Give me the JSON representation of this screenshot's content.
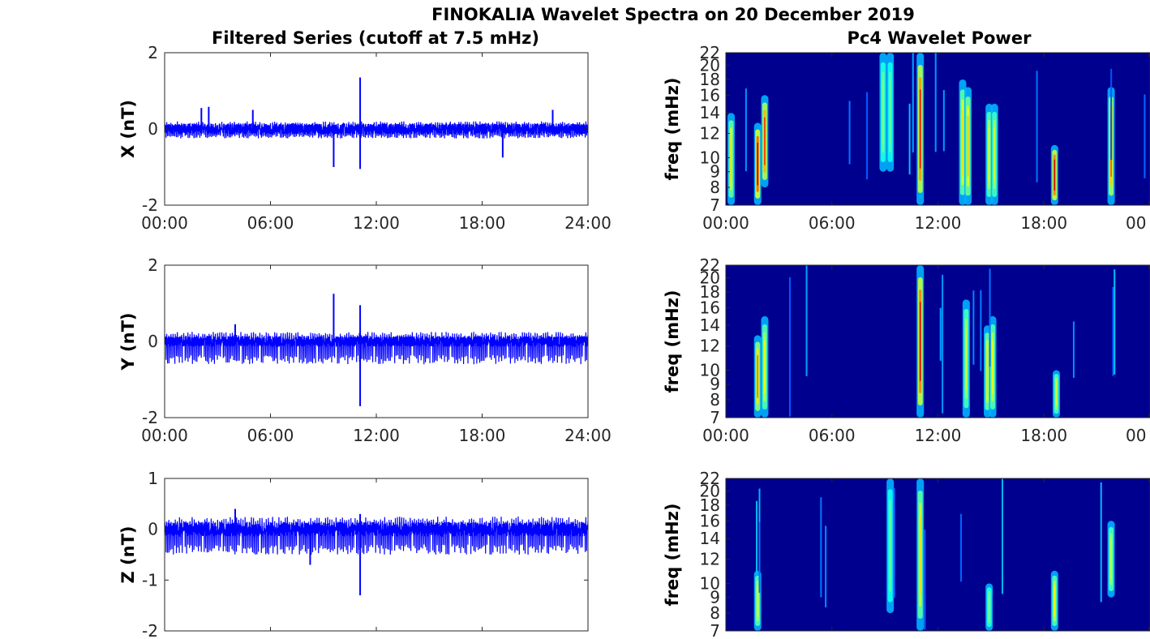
{
  "figure": {
    "title": "FINOKALIA Wavelet Spectra on 20 December 2019",
    "left_title": "Filtered Series (cutoff at 7.5 mHz)",
    "right_title": "Pc4 Wavelet Power",
    "colors": {
      "series": "#0000ff",
      "spectrum_bg": "#00008f",
      "axis": "#262626"
    }
  },
  "chart_data": [
    {
      "type": "line",
      "ylabel": "X (nT)",
      "ylim": [
        -2,
        2
      ],
      "yticks": [
        "-2",
        "0",
        "2"
      ],
      "xticks": [
        "00:00",
        "06:00",
        "12:00",
        "18:00",
        "24:00"
      ],
      "xlim_hours": [
        0,
        24
      ],
      "baseline_amplitude_nT": [
        -0.25,
        0.2
      ],
      "spikes": [
        {
          "t": "02:05",
          "y": 0.55
        },
        {
          "t": "02:30",
          "y": 0.58
        },
        {
          "t": "05:00",
          "y": 0.5
        },
        {
          "t": "09:35",
          "y": -1.0
        },
        {
          "t": "11:05",
          "y": 1.35
        },
        {
          "t": "11:05",
          "y": -1.05
        },
        {
          "t": "19:10",
          "y": -0.75
        },
        {
          "t": "22:00",
          "y": 0.5
        }
      ]
    },
    {
      "type": "line",
      "ylabel": "Y (nT)",
      "ylim": [
        -2,
        2
      ],
      "yticks": [
        "-2",
        "0",
        "2"
      ],
      "xticks": [
        "00:00",
        "06:00",
        "12:00",
        "18:00",
        "24:00"
      ],
      "xlim_hours": [
        0,
        24
      ],
      "baseline_amplitude_nT": [
        -0.6,
        0.25
      ],
      "spikes": [
        {
          "t": "04:00",
          "y": 0.45
        },
        {
          "t": "09:35",
          "y": 1.25
        },
        {
          "t": "11:05",
          "y": 0.95
        },
        {
          "t": "11:05",
          "y": -1.7
        }
      ]
    },
    {
      "type": "line",
      "ylabel": "Z (nT)",
      "ylim": [
        -2,
        1
      ],
      "yticks": [
        "-2",
        "-1",
        "0",
        "1"
      ],
      "xticks": [],
      "xlim_hours": [
        0,
        24
      ],
      "baseline_amplitude_nT": [
        -0.5,
        0.25
      ],
      "spikes": [
        {
          "t": "04:00",
          "y": 0.4
        },
        {
          "t": "08:15",
          "y": -0.7
        },
        {
          "t": "11:05",
          "y": -1.3
        },
        {
          "t": "11:05",
          "y": 0.3
        }
      ]
    },
    {
      "type": "heatmap",
      "ylabel": "freq (mHz)",
      "ylim": [
        7,
        22
      ],
      "yticks": [
        "7",
        "8",
        "9",
        "10",
        "12",
        "14",
        "16",
        "18",
        "20",
        "22"
      ],
      "xticks": [
        "00:00",
        "06:00",
        "12:00",
        "18:00",
        "00"
      ],
      "xlim_hours": [
        0,
        24
      ],
      "hotspots": [
        {
          "t_hours": 0.3,
          "f_range": [
            7,
            14
          ],
          "intensity": 0.55
        },
        {
          "t_hours": 1.8,
          "f_range": [
            7,
            13
          ],
          "intensity": 0.95
        },
        {
          "t_hours": 2.2,
          "f_range": [
            8,
            16
          ],
          "intensity": 0.8
        },
        {
          "t_hours": 11.0,
          "f_range": [
            7,
            22
          ],
          "intensity": 0.85
        },
        {
          "t_hours": 13.4,
          "f_range": [
            7,
            18
          ],
          "intensity": 0.55
        },
        {
          "t_hours": 13.7,
          "f_range": [
            7,
            17
          ],
          "intensity": 0.6
        },
        {
          "t_hours": 14.9,
          "f_range": [
            7,
            15
          ],
          "intensity": 0.5
        },
        {
          "t_hours": 15.2,
          "f_range": [
            7,
            15
          ],
          "intensity": 0.45
        },
        {
          "t_hours": 18.6,
          "f_range": [
            7,
            11
          ],
          "intensity": 0.9
        },
        {
          "t_hours": 21.8,
          "f_range": [
            7,
            17
          ],
          "intensity": 0.75
        },
        {
          "t_hours": 8.9,
          "f_range": [
            9,
            22
          ],
          "intensity": 0.35
        },
        {
          "t_hours": 9.3,
          "f_range": [
            9,
            22
          ],
          "intensity": 0.3
        }
      ]
    },
    {
      "type": "heatmap",
      "ylabel": "freq (mHz)",
      "ylim": [
        7,
        22
      ],
      "yticks": [
        "7",
        "8",
        "9",
        "10",
        "12",
        "14",
        "16",
        "18",
        "20",
        "22"
      ],
      "xticks": [
        "00:00",
        "06:00",
        "12:00",
        "18:00",
        "00"
      ],
      "xlim_hours": [
        0,
        24
      ],
      "hotspots": [
        {
          "t_hours": 1.8,
          "f_range": [
            7,
            13
          ],
          "intensity": 0.7
        },
        {
          "t_hours": 2.2,
          "f_range": [
            7,
            15
          ],
          "intensity": 0.5
        },
        {
          "t_hours": 11.0,
          "f_range": [
            7,
            22
          ],
          "intensity": 0.9
        },
        {
          "t_hours": 13.6,
          "f_range": [
            7,
            17
          ],
          "intensity": 0.45
        },
        {
          "t_hours": 14.8,
          "f_range": [
            7,
            14
          ],
          "intensity": 0.55
        },
        {
          "t_hours": 15.1,
          "f_range": [
            7,
            15
          ],
          "intensity": 0.5
        },
        {
          "t_hours": 18.7,
          "f_range": [
            7,
            10
          ],
          "intensity": 0.45
        }
      ]
    },
    {
      "type": "heatmap",
      "ylabel": "freq (mHz)",
      "ylim": [
        7,
        22
      ],
      "yticks": [
        "7",
        "8",
        "9",
        "10",
        "12",
        "14",
        "16",
        "18",
        "20",
        "22"
      ],
      "xticks": [],
      "xlim_hours": [
        0,
        24
      ],
      "hotspots": [
        {
          "t_hours": 1.8,
          "f_range": [
            7,
            11
          ],
          "intensity": 0.5
        },
        {
          "t_hours": 9.3,
          "f_range": [
            8,
            22
          ],
          "intensity": 0.3
        },
        {
          "t_hours": 11.0,
          "f_range": [
            7,
            22
          ],
          "intensity": 0.55
        },
        {
          "t_hours": 14.9,
          "f_range": [
            7,
            10
          ],
          "intensity": 0.35
        },
        {
          "t_hours": 18.6,
          "f_range": [
            7,
            11
          ],
          "intensity": 0.5
        },
        {
          "t_hours": 21.8,
          "f_range": [
            9,
            16
          ],
          "intensity": 0.45
        }
      ]
    }
  ]
}
